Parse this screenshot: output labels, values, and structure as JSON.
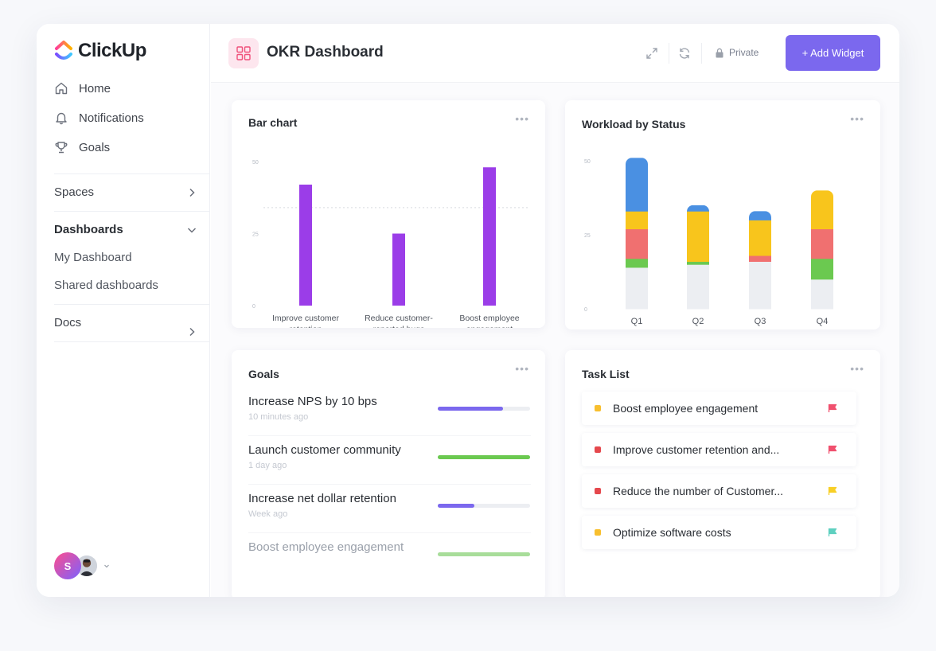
{
  "app": {
    "logo_text": "ClickUp"
  },
  "sidebar": {
    "nav": [
      {
        "label": "Home",
        "icon": "home-icon"
      },
      {
        "label": "Notifications",
        "icon": "bell-icon"
      },
      {
        "label": "Goals",
        "icon": "trophy-icon"
      }
    ],
    "spaces_label": "Spaces",
    "dashboards_label": "Dashboards",
    "dashboards_items": [
      "My Dashboard",
      "Shared dashboards"
    ],
    "docs_label": "Docs",
    "avatar_initial": "S"
  },
  "header": {
    "title": "OKR Dashboard",
    "private_label": "Private",
    "add_widget_label": "+ Add Widget"
  },
  "bar_card": {
    "title": "Bar chart"
  },
  "workload_card": {
    "title": "Workload by Status"
  },
  "goals_card": {
    "title": "Goals",
    "goals": [
      {
        "name": "Increase NPS by 10 bps",
        "time": "10 minutes ago",
        "progress": 0.71,
        "color": "#7b68ee"
      },
      {
        "name": "Launch customer community",
        "time": "1 day ago",
        "progress": 1.0,
        "color": "#6bc950"
      },
      {
        "name": "Increase net dollar retention",
        "time": "Week ago",
        "progress": 0.4,
        "color": "#7b68ee"
      },
      {
        "name": "Boost employee engagement",
        "time": "",
        "progress": 1.0,
        "color": "#a8dd9a"
      }
    ]
  },
  "tasks_card": {
    "title": "Task List",
    "tasks": [
      {
        "name": "Boost employee engagement",
        "status_color": "#f8bf2e",
        "flag_color": "#f0506e"
      },
      {
        "name": "Improve customer retention and...",
        "status_color": "#e5484d",
        "flag_color": "#f0506e"
      },
      {
        "name": "Reduce the number of Customer...",
        "status_color": "#e5484d",
        "flag_color": "#f8cf26"
      },
      {
        "name": "Optimize software costs",
        "status_color": "#f8bf2e",
        "flag_color": "#5fd0c0"
      }
    ]
  },
  "chart_data": [
    {
      "type": "bar",
      "title": "Bar chart",
      "categories": [
        [
          "Improve customer",
          "retention"
        ],
        [
          "Reduce customer-",
          "reported bugs"
        ],
        [
          "Boost employee",
          "engagement"
        ]
      ],
      "values": [
        42,
        25,
        48
      ],
      "reference_line": 34,
      "ylim": [
        0,
        50
      ],
      "yticks": [
        "0",
        "25",
        "50"
      ],
      "bar_color": "#9b3de8",
      "grid": false
    },
    {
      "type": "bar",
      "stacked": true,
      "title": "Workload by Status",
      "categories": [
        "Q1",
        "Q2",
        "Q3",
        "Q4"
      ],
      "ylim": [
        0,
        50
      ],
      "yticks": [
        "0",
        "25",
        "50"
      ],
      "series": [
        {
          "color": "#eceef2",
          "values": [
            14,
            15,
            16,
            10
          ]
        },
        {
          "color": "#6bc950",
          "values": [
            3,
            1,
            0,
            7
          ]
        },
        {
          "color": "#f07070",
          "values": [
            10,
            0,
            2,
            10
          ]
        },
        {
          "color": "#f8c51c",
          "values": [
            6,
            17,
            12,
            13
          ]
        },
        {
          "color": "#4a90e2",
          "values": [
            18,
            2,
            3,
            0
          ]
        }
      ]
    }
  ]
}
